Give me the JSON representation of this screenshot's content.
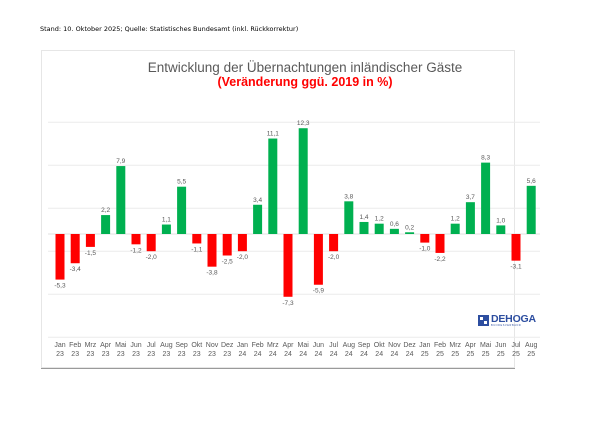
{
  "header": {
    "source_note": "Stand: 10. Oktober 2025; Quelle: Statistisches Bundesamt (inkl. Rückkorrektur)"
  },
  "logo": {
    "word": "DEHOGA",
    "sub": "BUNDESVERBAND"
  },
  "colors": {
    "positive": "#00b050",
    "negative": "#ff0000",
    "title": "#595959",
    "subtitle": "#ff0000",
    "grid": "#ececec",
    "label": "#595959"
  },
  "chart_data": {
    "type": "bar",
    "title": "Entwicklung der Übernachtungen inländischer Gäste",
    "subtitle": "(Veränderung ggü. 2019 in %)",
    "xlabel": "",
    "ylabel": "",
    "ylim": [
      -9,
      14
    ],
    "grid": true,
    "legend": "none",
    "categories": [
      [
        "Jan",
        "23"
      ],
      [
        "Feb",
        "23"
      ],
      [
        "Mrz",
        "23"
      ],
      [
        "Apr",
        "23"
      ],
      [
        "Mai",
        "23"
      ],
      [
        "Jun",
        "23"
      ],
      [
        "Jul",
        "23"
      ],
      [
        "Aug",
        "23"
      ],
      [
        "Sep",
        "23"
      ],
      [
        "Okt",
        "23"
      ],
      [
        "Nov",
        "23"
      ],
      [
        "Dez",
        "23"
      ],
      [
        "Jan",
        "24"
      ],
      [
        "Feb",
        "24"
      ],
      [
        "Mrz",
        "24"
      ],
      [
        "Apr",
        "24"
      ],
      [
        "Mai",
        "24"
      ],
      [
        "Jun",
        "24"
      ],
      [
        "Jul",
        "24"
      ],
      [
        "Aug",
        "24"
      ],
      [
        "Sep",
        "24"
      ],
      [
        "Okt",
        "24"
      ],
      [
        "Nov",
        "24"
      ],
      [
        "Dez",
        "24"
      ],
      [
        "Jan",
        "25"
      ],
      [
        "Feb",
        "25"
      ],
      [
        "Mrz",
        "25"
      ],
      [
        "Apr",
        "25"
      ],
      [
        "Mai",
        "25"
      ],
      [
        "Jun",
        "25"
      ],
      [
        "Jul",
        "25"
      ],
      [
        "Aug",
        "25"
      ]
    ],
    "values": [
      -5.3,
      -3.4,
      -1.5,
      2.2,
      7.9,
      -1.2,
      -2.0,
      1.1,
      5.5,
      -1.1,
      -3.8,
      -2.5,
      -2.0,
      3.4,
      11.1,
      -7.3,
      12.3,
      -5.9,
      -2.0,
      3.8,
      1.4,
      1.2,
      0.6,
      0.2,
      -1.0,
      -2.2,
      1.2,
      3.7,
      8.3,
      1.0,
      -3.1,
      5.6
    ],
    "labels": [
      "-5,3",
      "-3,4",
      "-1,5",
      "2,2",
      "7,9",
      "-1,2",
      "-2,0",
      "1,1",
      "5,5",
      "-1,1",
      "-3,8",
      "-2,5",
      "-2,0",
      "3,4",
      "11,1",
      "-7,3",
      "12,3",
      "-5,9",
      "-2,0",
      "3,8",
      "1,4",
      "1,2",
      "0,6",
      "0,2",
      "-1,0",
      "-2,2",
      "1,2",
      "3,7",
      "8,3",
      "1,0",
      "-3,1",
      "5,6"
    ]
  }
}
